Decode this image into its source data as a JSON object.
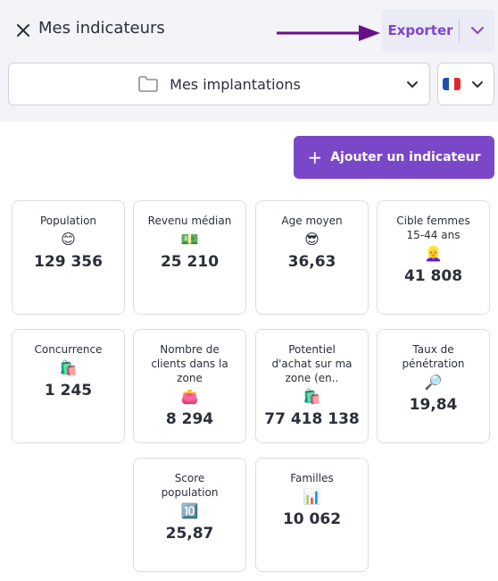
{
  "header": {
    "title": "Mes indicateurs",
    "export_label": "Exporter"
  },
  "filters": {
    "implantation_label": "Mes implantations",
    "language_flag": "france-flag-icon"
  },
  "actions": {
    "add_indicator_label": "Ajouter un indicateur"
  },
  "colors": {
    "accent": "#7b47c9",
    "arrow": "#6a0f8a",
    "topbar_bg": "#f3f3f8",
    "card_border": "#dcdde3"
  },
  "indicators": [
    {
      "label": "Population",
      "icon": "😊",
      "icon_name": "smiling-face-icon",
      "value": "129 356"
    },
    {
      "label": "Revenu médian",
      "icon": "💵",
      "icon_name": "banknote-icon",
      "value": "25 210"
    },
    {
      "label": "Age moyen",
      "icon": "😎",
      "icon_name": "sunglasses-face-icon",
      "value": "36,63"
    },
    {
      "label": "Cible femmes 15-44 ans",
      "icon": "👱‍♀️",
      "icon_name": "blond-woman-icon",
      "value": "41 808"
    },
    {
      "label": "Concurrence",
      "icon": "🛍️",
      "icon_name": "shopping-bags-icon",
      "value": "1 245"
    },
    {
      "label": "Nombre de clients dans la zone",
      "icon": "👛",
      "icon_name": "purse-icon",
      "value": "8 294"
    },
    {
      "label": "Potentiel d'achat sur ma zone (en..",
      "icon": "🛍️",
      "icon_name": "shopping-bags-icon",
      "value": "77 418 138"
    },
    {
      "label": "Taux de pénétration",
      "icon": "🔎",
      "icon_name": "magnifier-icon",
      "value": "19,84"
    },
    {
      "label": "Score population",
      "icon": "🔟",
      "icon_name": "keycap-ten-icon",
      "value": "25,87"
    },
    {
      "label": "Familles",
      "icon": "📊",
      "icon_name": "bar-chart-icon",
      "value": "10 062"
    }
  ]
}
